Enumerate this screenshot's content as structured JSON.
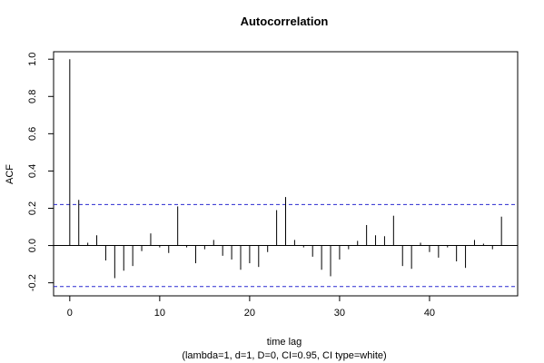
{
  "chart_data": {
    "type": "bar",
    "title": "Autocorrelation",
    "xlabel": "time lag",
    "subtitle": "(lambda=1, d=1, D=0, CI=0.95, CI type=white)",
    "ylabel": "ACF",
    "xlim": [
      -1.8,
      49.8
    ],
    "ylim": [
      -0.27,
      1.04
    ],
    "xticks": [
      0,
      10,
      20,
      30,
      40
    ],
    "yticks": [
      -0.2,
      0.0,
      0.2,
      0.4,
      0.6,
      0.8,
      1.0
    ],
    "xtick_labels": [
      "0",
      "10",
      "20",
      "30",
      "40"
    ],
    "ytick_labels": [
      "-0.2",
      "0.0",
      "0.2",
      "0.4",
      "0.6",
      "0.8",
      "1.0"
    ],
    "ci_bounds": [
      0.22,
      -0.22
    ],
    "grid": false,
    "lags": [
      0,
      1,
      2,
      3,
      4,
      5,
      6,
      7,
      8,
      9,
      10,
      11,
      12,
      13,
      14,
      15,
      16,
      17,
      18,
      19,
      20,
      21,
      22,
      23,
      24,
      25,
      26,
      27,
      28,
      29,
      30,
      31,
      32,
      33,
      34,
      35,
      36,
      37,
      38,
      39,
      40,
      41,
      42,
      43,
      44,
      45,
      46,
      47,
      48
    ],
    "values": [
      1.0,
      0.245,
      0.015,
      0.055,
      -0.08,
      -0.175,
      -0.135,
      -0.11,
      -0.03,
      0.065,
      -0.01,
      -0.04,
      0.21,
      -0.01,
      -0.095,
      -0.02,
      0.03,
      -0.055,
      -0.075,
      -0.13,
      -0.095,
      -0.115,
      -0.035,
      0.19,
      0.26,
      0.03,
      -0.01,
      -0.06,
      -0.13,
      -0.165,
      -0.075,
      -0.02,
      0.025,
      0.11,
      0.055,
      0.05,
      0.16,
      -0.11,
      -0.125,
      0.015,
      -0.035,
      -0.065,
      -0.01,
      -0.085,
      -0.12,
      0.03,
      0.01,
      -0.02,
      0.155
    ]
  }
}
